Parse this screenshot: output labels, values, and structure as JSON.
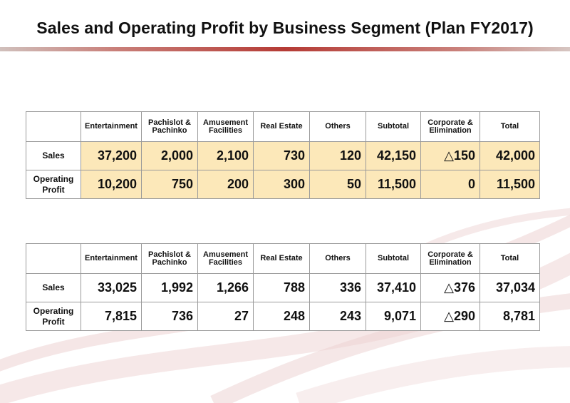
{
  "title": "Sales and Operating Profit by Business Segment (Plan FY2017)",
  "colors": {
    "plan_cell": "#fce8b9",
    "accent_bar": "#b53b35"
  },
  "columns": [
    "Entertainment",
    "Pachislot & Pachinko",
    "Amusement Facilities",
    "Real Estate",
    "Others",
    "Subtotal",
    "Corporate & Elimination",
    "Total"
  ],
  "plan": {
    "sales": {
      "label": "Sales",
      "values": [
        "37,200",
        "2,000",
        "2,100",
        "730",
        "120",
        "42,150",
        "△150",
        "42,000"
      ]
    },
    "op": {
      "label": "Operating Profit",
      "values": [
        "10,200",
        "750",
        "200",
        "300",
        "50",
        "11,500",
        "0",
        "11,500"
      ]
    }
  },
  "actual": {
    "sales": {
      "label": "Sales",
      "values": [
        "33,025",
        "1,992",
        "1,266",
        "788",
        "336",
        "37,410",
        "△376",
        "37,034"
      ]
    },
    "op": {
      "label": "Operating Profit",
      "values": [
        "7,815",
        "736",
        "27",
        "248",
        "243",
        "9,071",
        "△290",
        "8,781"
      ]
    }
  }
}
